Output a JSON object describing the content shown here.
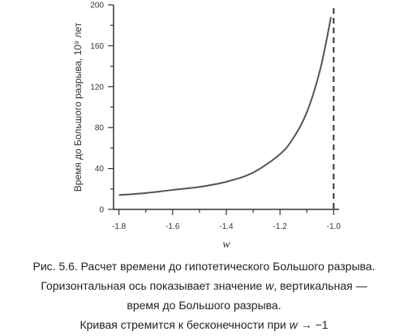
{
  "chart_data": {
    "type": "line",
    "title": "",
    "xlabel": "w",
    "ylabel": "Время до Большого разрыва, 10⁹ лет",
    "xlim": [
      -1.82,
      -0.98
    ],
    "ylim": [
      0,
      200
    ],
    "xticks": [
      -1.8,
      -1.6,
      -1.4,
      -1.2,
      -1.0
    ],
    "xtick_labels": [
      "-1.8",
      "-1.6",
      "-1.4",
      "-1.2",
      "-1.0"
    ],
    "yticks": [
      0,
      40,
      80,
      120,
      160,
      200
    ],
    "ytick_labels": [
      "0",
      "40",
      "80",
      "120",
      "160",
      "200"
    ],
    "grid": false,
    "series": [
      {
        "x": [
          -1.8,
          -1.7,
          -1.6,
          -1.5,
          -1.4,
          -1.3,
          -1.2,
          -1.15,
          -1.1,
          -1.05,
          -1.01
        ],
        "y": [
          14,
          16,
          19,
          22,
          27,
          36,
          54,
          70,
          95,
          137,
          188
        ]
      }
    ],
    "asymptote_x": -1.0,
    "colors": {
      "line": "#555555",
      "axis": "#333333"
    }
  },
  "caption": {
    "line1": "Рис. 5.6. Расчет времени до гипотетического Большого разрыва.",
    "line2_a": "Горизонтальная ось показывает значение ",
    "line2_var": "w",
    "line2_b": ", вертикальная —",
    "line3": "время до Большого разрыва.",
    "line4_a": "Кривая стремится к бесконечности при ",
    "line4_var": "w",
    "line4_b": " → −1"
  }
}
